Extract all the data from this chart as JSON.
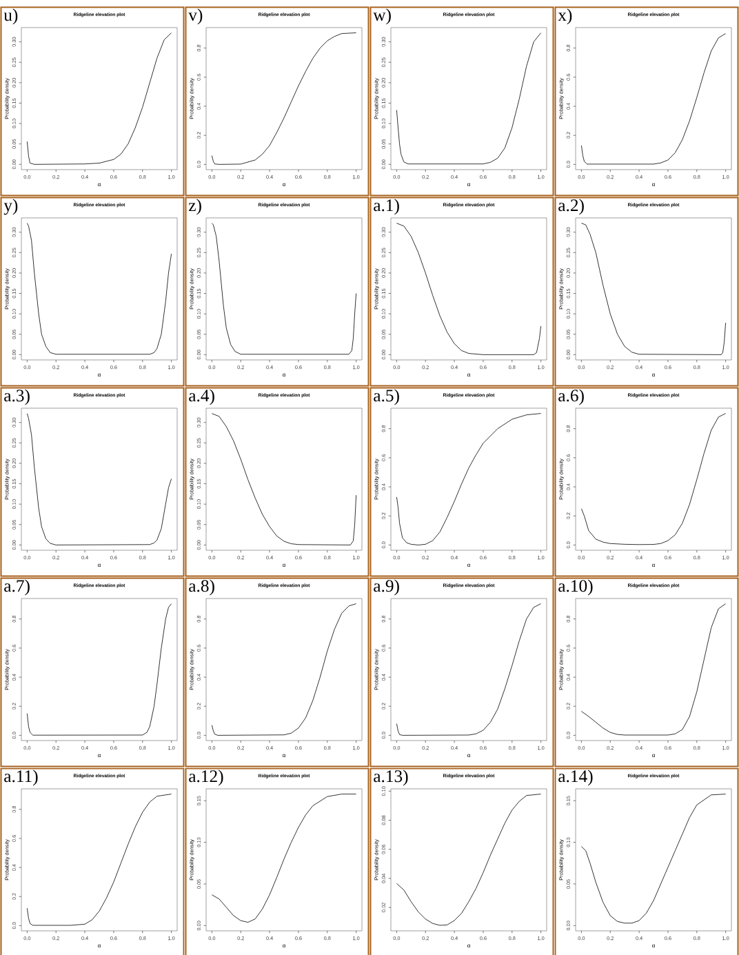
{
  "chart_data": [
    {
      "type": "line",
      "title": "Ridgeline elevation plot",
      "xlabel": "α",
      "ylabel": "Probability density",
      "annotations": [
        "u)"
      ],
      "color": "#000000",
      "xlim": [
        -0.04,
        1.04
      ],
      "ylim": [
        -0.0129,
        0.335
      ],
      "xticks": [
        {
          "value": 0,
          "label": "0.0"
        },
        {
          "value": 0.2,
          "label": "0.2"
        },
        {
          "value": 0.4,
          "label": "0.4"
        },
        {
          "value": 0.6,
          "label": "0.6"
        },
        {
          "value": 0.8,
          "label": "0.8"
        },
        {
          "value": 1,
          "label": "1.0"
        }
      ],
      "yticks": [
        {
          "value": 0,
          "label": "0.00"
        },
        {
          "value": 0.05,
          "label": "0.05"
        },
        {
          "value": 0.1,
          "label": "0.10"
        },
        {
          "value": 0.15,
          "label": "0.15"
        },
        {
          "value": 0.2,
          "label": "0.20"
        },
        {
          "value": 0.25,
          "label": "0.25"
        },
        {
          "value": 0.3,
          "label": "0.30"
        }
      ],
      "x": [
        0,
        0.01,
        0.02,
        0.05,
        0.4,
        0.5,
        0.6,
        0.65,
        0.7,
        0.75,
        0.8,
        0.85,
        0.9,
        0.95,
        1
      ],
      "values": [
        0.056,
        0.02,
        0.003,
        0,
        0.001,
        0.003,
        0.012,
        0.025,
        0.05,
        0.09,
        0.14,
        0.2,
        0.26,
        0.305,
        0.322
      ]
    },
    {
      "type": "line",
      "title": "Ridgeline elevation plot",
      "xlabel": "α",
      "ylabel": "Probability density",
      "annotations": [
        "v)"
      ],
      "color": "#000000",
      "xlim": [
        -0.04,
        1.04
      ],
      "ylim": [
        -0.036,
        0.941
      ],
      "xticks": [
        {
          "value": 0,
          "label": "0.0"
        },
        {
          "value": 0.2,
          "label": "0.2"
        },
        {
          "value": 0.4,
          "label": "0.4"
        },
        {
          "value": 0.6,
          "label": "0.6"
        },
        {
          "value": 0.8,
          "label": "0.8"
        },
        {
          "value": 1,
          "label": "1.0"
        }
      ],
      "yticks": [
        {
          "value": 0,
          "label": "0.0"
        },
        {
          "value": 0.2,
          "label": "0.2"
        },
        {
          "value": 0.4,
          "label": "0.4"
        },
        {
          "value": 0.6,
          "label": "0.6"
        },
        {
          "value": 0.8,
          "label": "0.8"
        }
      ],
      "x": [
        0,
        0.01,
        0.02,
        0.05,
        0.2,
        0.3,
        0.35,
        0.4,
        0.45,
        0.5,
        0.55,
        0.6,
        0.65,
        0.7,
        0.75,
        0.8,
        0.85,
        0.9,
        1
      ],
      "values": [
        0.06,
        0.02,
        0.003,
        0,
        0.002,
        0.03,
        0.07,
        0.13,
        0.22,
        0.32,
        0.43,
        0.54,
        0.64,
        0.73,
        0.8,
        0.85,
        0.88,
        0.9,
        0.905
      ]
    },
    {
      "type": "line",
      "title": "Ridgeline elevation plot",
      "xlabel": "α",
      "ylabel": "Probability density",
      "annotations": [
        "w)"
      ],
      "color": "#000000",
      "xlim": [
        -0.04,
        1.04
      ],
      "ylim": [
        -0.0129,
        0.335
      ],
      "xticks": [
        {
          "value": 0,
          "label": "0.0"
        },
        {
          "value": 0.2,
          "label": "0.2"
        },
        {
          "value": 0.4,
          "label": "0.4"
        },
        {
          "value": 0.6,
          "label": "0.6"
        },
        {
          "value": 0.8,
          "label": "0.8"
        },
        {
          "value": 1,
          "label": "1.0"
        }
      ],
      "yticks": [
        {
          "value": 0,
          "label": "0.00"
        },
        {
          "value": 0.05,
          "label": "0.05"
        },
        {
          "value": 0.1,
          "label": "0.10"
        },
        {
          "value": 0.15,
          "label": "0.15"
        },
        {
          "value": 0.2,
          "label": "0.20"
        },
        {
          "value": 0.25,
          "label": "0.25"
        },
        {
          "value": 0.3,
          "label": "0.30"
        }
      ],
      "x": [
        0,
        0.01,
        0.02,
        0.03,
        0.05,
        0.08,
        0.6,
        0.65,
        0.7,
        0.75,
        0.8,
        0.85,
        0.9,
        0.95,
        1
      ],
      "values": [
        0.133,
        0.09,
        0.05,
        0.025,
        0.006,
        0.001,
        0.001,
        0.005,
        0.015,
        0.04,
        0.09,
        0.16,
        0.24,
        0.3,
        0.322
      ]
    },
    {
      "type": "line",
      "title": "Ridgeline elevation plot",
      "xlabel": "α",
      "ylabel": "Probability density",
      "annotations": [
        "x)"
      ],
      "color": "#000000",
      "xlim": [
        -0.04,
        1.04
      ],
      "ylim": [
        -0.036,
        0.941
      ],
      "xticks": [
        {
          "value": 0,
          "label": "0.0"
        },
        {
          "value": 0.2,
          "label": "0.2"
        },
        {
          "value": 0.4,
          "label": "0.4"
        },
        {
          "value": 0.6,
          "label": "0.6"
        },
        {
          "value": 0.8,
          "label": "0.8"
        },
        {
          "value": 1,
          "label": "1.0"
        }
      ],
      "yticks": [
        {
          "value": 0,
          "label": "0.0"
        },
        {
          "value": 0.2,
          "label": "0.2"
        },
        {
          "value": 0.4,
          "label": "0.4"
        },
        {
          "value": 0.6,
          "label": "0.6"
        },
        {
          "value": 0.8,
          "label": "0.8"
        }
      ],
      "x": [
        0,
        0.01,
        0.02,
        0.04,
        0.5,
        0.55,
        0.6,
        0.65,
        0.7,
        0.75,
        0.8,
        0.85,
        0.9,
        0.95,
        1
      ],
      "values": [
        0.13,
        0.06,
        0.02,
        0.002,
        0.002,
        0.01,
        0.03,
        0.08,
        0.17,
        0.3,
        0.46,
        0.63,
        0.78,
        0.87,
        0.9
      ]
    },
    {
      "type": "line",
      "title": "Ridgeline elevation plot",
      "xlabel": "α",
      "ylabel": "Probability density",
      "annotations": [
        "y)"
      ],
      "color": "#000000",
      "xlim": [
        -0.04,
        1.04
      ],
      "ylim": [
        -0.0129,
        0.335
      ],
      "xticks": [
        {
          "value": 0,
          "label": "0.0"
        },
        {
          "value": 0.2,
          "label": "0.2"
        },
        {
          "value": 0.4,
          "label": "0.4"
        },
        {
          "value": 0.6,
          "label": "0.6"
        },
        {
          "value": 0.8,
          "label": "0.8"
        },
        {
          "value": 1,
          "label": "1.0"
        }
      ],
      "yticks": [
        {
          "value": 0,
          "label": "0.00"
        },
        {
          "value": 0.05,
          "label": "0.05"
        },
        {
          "value": 0.1,
          "label": "0.10"
        },
        {
          "value": 0.15,
          "label": "0.15"
        },
        {
          "value": 0.2,
          "label": "0.20"
        },
        {
          "value": 0.25,
          "label": "0.25"
        },
        {
          "value": 0.3,
          "label": "0.30"
        }
      ],
      "x": [
        0,
        0.01,
        0.03,
        0.05,
        0.08,
        0.1,
        0.13,
        0.16,
        0.2,
        0.85,
        0.88,
        0.9,
        0.93,
        0.96,
        0.98,
        1
      ],
      "values": [
        0.322,
        0.315,
        0.28,
        0.2,
        0.1,
        0.05,
        0.02,
        0.005,
        0.001,
        0.001,
        0.005,
        0.015,
        0.05,
        0.13,
        0.2,
        0.247
      ]
    },
    {
      "type": "line",
      "title": "Ridgeline elevation plot",
      "xlabel": "α",
      "ylabel": "Probability density",
      "annotations": [
        "z)"
      ],
      "color": "#000000",
      "xlim": [
        -0.04,
        1.04
      ],
      "ylim": [
        -0.0129,
        0.335
      ],
      "xticks": [
        {
          "value": 0,
          "label": "0.0"
        },
        {
          "value": 0.2,
          "label": "0.2"
        },
        {
          "value": 0.4,
          "label": "0.4"
        },
        {
          "value": 0.6,
          "label": "0.6"
        },
        {
          "value": 0.8,
          "label": "0.8"
        },
        {
          "value": 1,
          "label": "1.0"
        }
      ],
      "yticks": [
        {
          "value": 0,
          "label": "0.00"
        },
        {
          "value": 0.05,
          "label": "0.05"
        },
        {
          "value": 0.1,
          "label": "0.10"
        },
        {
          "value": 0.15,
          "label": "0.15"
        },
        {
          "value": 0.2,
          "label": "0.20"
        },
        {
          "value": 0.25,
          "label": "0.25"
        },
        {
          "value": 0.3,
          "label": "0.30"
        }
      ],
      "x": [
        0,
        0.01,
        0.03,
        0.05,
        0.08,
        0.1,
        0.13,
        0.16,
        0.2,
        0.95,
        0.97,
        0.98,
        0.99,
        1
      ],
      "values": [
        0.322,
        0.318,
        0.29,
        0.23,
        0.12,
        0.065,
        0.025,
        0.008,
        0.001,
        0.001,
        0.01,
        0.04,
        0.1,
        0.15
      ]
    },
    {
      "type": "line",
      "title": "Ridgeline elevation plot",
      "xlabel": "α",
      "ylabel": "Probability density",
      "annotations": [
        "a.1)"
      ],
      "color": "#000000",
      "xlim": [
        -0.04,
        1.04
      ],
      "ylim": [
        -0.0129,
        0.335
      ],
      "xticks": [
        {
          "value": 0,
          "label": "0.0"
        },
        {
          "value": 0.2,
          "label": "0.2"
        },
        {
          "value": 0.4,
          "label": "0.4"
        },
        {
          "value": 0.6,
          "label": "0.6"
        },
        {
          "value": 0.8,
          "label": "0.8"
        },
        {
          "value": 1,
          "label": "1.0"
        }
      ],
      "yticks": [
        {
          "value": 0,
          "label": "0.00"
        },
        {
          "value": 0.05,
          "label": "0.05"
        },
        {
          "value": 0.1,
          "label": "0.10"
        },
        {
          "value": 0.15,
          "label": "0.15"
        },
        {
          "value": 0.2,
          "label": "0.20"
        },
        {
          "value": 0.25,
          "label": "0.25"
        },
        {
          "value": 0.3,
          "label": "0.30"
        }
      ],
      "x": [
        0,
        0.05,
        0.1,
        0.15,
        0.2,
        0.25,
        0.3,
        0.35,
        0.4,
        0.45,
        0.5,
        0.6,
        0.95,
        0.97,
        0.99,
        1
      ],
      "values": [
        0.322,
        0.315,
        0.29,
        0.25,
        0.2,
        0.145,
        0.095,
        0.055,
        0.027,
        0.01,
        0.003,
        0,
        0,
        0.005,
        0.04,
        0.07
      ]
    },
    {
      "type": "line",
      "title": "Ridgeline elevation plot",
      "xlabel": "α",
      "ylabel": "Probability density",
      "annotations": [
        "a.2)"
      ],
      "color": "#000000",
      "xlim": [
        -0.04,
        1.04
      ],
      "ylim": [
        -0.0129,
        0.335
      ],
      "xticks": [
        {
          "value": 0,
          "label": "0.0"
        },
        {
          "value": 0.2,
          "label": "0.2"
        },
        {
          "value": 0.4,
          "label": "0.4"
        },
        {
          "value": 0.6,
          "label": "0.6"
        },
        {
          "value": 0.8,
          "label": "0.8"
        },
        {
          "value": 1,
          "label": "1.0"
        }
      ],
      "yticks": [
        {
          "value": 0,
          "label": "0.00"
        },
        {
          "value": 0.05,
          "label": "0.05"
        },
        {
          "value": 0.1,
          "label": "0.10"
        },
        {
          "value": 0.15,
          "label": "0.15"
        },
        {
          "value": 0.2,
          "label": "0.20"
        },
        {
          "value": 0.25,
          "label": "0.25"
        },
        {
          "value": 0.3,
          "label": "0.30"
        }
      ],
      "x": [
        0,
        0.03,
        0.06,
        0.1,
        0.15,
        0.2,
        0.25,
        0.3,
        0.35,
        0.4,
        0.97,
        0.98,
        0.99,
        1
      ],
      "values": [
        0.322,
        0.318,
        0.295,
        0.25,
        0.17,
        0.1,
        0.05,
        0.02,
        0.006,
        0.001,
        0,
        0.005,
        0.03,
        0.078
      ]
    },
    {
      "type": "line",
      "title": "Ridgeline elevation plot",
      "xlabel": "α",
      "ylabel": "Probability density",
      "annotations": [
        "a.3)"
      ],
      "color": "#000000",
      "xlim": [
        -0.04,
        1.04
      ],
      "ylim": [
        -0.0129,
        0.335
      ],
      "xticks": [
        {
          "value": 0,
          "label": "0.0"
        },
        {
          "value": 0.2,
          "label": "0.2"
        },
        {
          "value": 0.4,
          "label": "0.4"
        },
        {
          "value": 0.6,
          "label": "0.6"
        },
        {
          "value": 0.8,
          "label": "0.8"
        },
        {
          "value": 1,
          "label": "1.0"
        }
      ],
      "yticks": [
        {
          "value": 0,
          "label": "0.00"
        },
        {
          "value": 0.05,
          "label": "0.05"
        },
        {
          "value": 0.1,
          "label": "0.10"
        },
        {
          "value": 0.15,
          "label": "0.15"
        },
        {
          "value": 0.2,
          "label": "0.20"
        },
        {
          "value": 0.25,
          "label": "0.25"
        },
        {
          "value": 0.3,
          "label": "0.30"
        }
      ],
      "x": [
        0,
        0.01,
        0.03,
        0.05,
        0.08,
        0.1,
        0.13,
        0.16,
        0.2,
        0.85,
        0.88,
        0.9,
        0.93,
        0.96,
        0.98,
        1
      ],
      "values": [
        0.322,
        0.31,
        0.27,
        0.19,
        0.09,
        0.045,
        0.015,
        0.004,
        0,
        0.001,
        0.005,
        0.012,
        0.04,
        0.1,
        0.14,
        0.162
      ]
    },
    {
      "type": "line",
      "title": "Ridgeline elevation plot",
      "xlabel": "α",
      "ylabel": "Probability density",
      "annotations": [
        "a.4)"
      ],
      "color": "#000000",
      "xlim": [
        -0.04,
        1.04
      ],
      "ylim": [
        -0.0129,
        0.335
      ],
      "xticks": [
        {
          "value": 0,
          "label": "0.0"
        },
        {
          "value": 0.2,
          "label": "0.2"
        },
        {
          "value": 0.4,
          "label": "0.4"
        },
        {
          "value": 0.6,
          "label": "0.6"
        },
        {
          "value": 0.8,
          "label": "0.8"
        },
        {
          "value": 1,
          "label": "1.0"
        }
      ],
      "yticks": [
        {
          "value": 0,
          "label": "0.00"
        },
        {
          "value": 0.05,
          "label": "0.05"
        },
        {
          "value": 0.1,
          "label": "0.10"
        },
        {
          "value": 0.15,
          "label": "0.15"
        },
        {
          "value": 0.2,
          "label": "0.20"
        },
        {
          "value": 0.25,
          "label": "0.25"
        },
        {
          "value": 0.3,
          "label": "0.30"
        }
      ],
      "x": [
        0,
        0.05,
        0.1,
        0.15,
        0.2,
        0.25,
        0.3,
        0.35,
        0.4,
        0.45,
        0.5,
        0.55,
        0.6,
        0.96,
        0.98,
        0.99,
        1
      ],
      "values": [
        0.322,
        0.315,
        0.29,
        0.255,
        0.21,
        0.16,
        0.115,
        0.075,
        0.045,
        0.022,
        0.009,
        0.003,
        0.001,
        0,
        0.01,
        0.05,
        0.122
      ]
    },
    {
      "type": "line",
      "title": "Ridgeline elevation plot",
      "xlabel": "α",
      "ylabel": "Probability density",
      "annotations": [
        "a.5)"
      ],
      "color": "#000000",
      "xlim": [
        -0.04,
        1.04
      ],
      "ylim": [
        -0.036,
        0.941
      ],
      "xticks": [
        {
          "value": 0,
          "label": "0.0"
        },
        {
          "value": 0.2,
          "label": "0.2"
        },
        {
          "value": 0.4,
          "label": "0.4"
        },
        {
          "value": 0.6,
          "label": "0.6"
        },
        {
          "value": 0.8,
          "label": "0.8"
        },
        {
          "value": 1,
          "label": "1.0"
        }
      ],
      "yticks": [
        {
          "value": 0,
          "label": "0.0"
        },
        {
          "value": 0.2,
          "label": "0.2"
        },
        {
          "value": 0.4,
          "label": "0.4"
        },
        {
          "value": 0.6,
          "label": "0.6"
        },
        {
          "value": 0.8,
          "label": "0.8"
        }
      ],
      "x": [
        0,
        0.01,
        0.02,
        0.04,
        0.07,
        0.1,
        0.15,
        0.2,
        0.25,
        0.3,
        0.35,
        0.4,
        0.45,
        0.5,
        0.55,
        0.6,
        0.7,
        0.8,
        0.9,
        1
      ],
      "values": [
        0.33,
        0.26,
        0.15,
        0.05,
        0.015,
        0.005,
        0,
        0.005,
        0.03,
        0.09,
        0.19,
        0.3,
        0.42,
        0.53,
        0.62,
        0.7,
        0.8,
        0.865,
        0.895,
        0.905
      ]
    },
    {
      "type": "line",
      "title": "Ridgeline elevation plot",
      "xlabel": "α",
      "ylabel": "Probability density",
      "annotations": [
        "a.6)"
      ],
      "color": "#000000",
      "xlim": [
        -0.04,
        1.04
      ],
      "ylim": [
        -0.036,
        0.941
      ],
      "xticks": [
        {
          "value": 0,
          "label": "0.0"
        },
        {
          "value": 0.2,
          "label": "0.2"
        },
        {
          "value": 0.4,
          "label": "0.4"
        },
        {
          "value": 0.6,
          "label": "0.6"
        },
        {
          "value": 0.8,
          "label": "0.8"
        },
        {
          "value": 1,
          "label": "1.0"
        }
      ],
      "yticks": [
        {
          "value": 0,
          "label": "0.0"
        },
        {
          "value": 0.2,
          "label": "0.2"
        },
        {
          "value": 0.4,
          "label": "0.4"
        },
        {
          "value": 0.6,
          "label": "0.6"
        },
        {
          "value": 0.8,
          "label": "0.8"
        }
      ],
      "x": [
        0,
        0.02,
        0.05,
        0.1,
        0.15,
        0.2,
        0.3,
        0.4,
        0.5,
        0.55,
        0.6,
        0.65,
        0.7,
        0.75,
        0.8,
        0.85,
        0.9,
        0.95,
        1
      ],
      "values": [
        0.25,
        0.2,
        0.1,
        0.04,
        0.02,
        0.01,
        0.005,
        0.003,
        0.004,
        0.01,
        0.03,
        0.07,
        0.15,
        0.28,
        0.45,
        0.63,
        0.79,
        0.88,
        0.905
      ]
    },
    {
      "type": "line",
      "title": "Ridgeline elevation plot",
      "xlabel": "α",
      "ylabel": "Probability density",
      "annotations": [
        "a.7)"
      ],
      "color": "#000000",
      "xlim": [
        -0.04,
        1.04
      ],
      "ylim": [
        -0.036,
        0.941
      ],
      "xticks": [
        {
          "value": 0,
          "label": "0.0"
        },
        {
          "value": 0.2,
          "label": "0.2"
        },
        {
          "value": 0.4,
          "label": "0.4"
        },
        {
          "value": 0.6,
          "label": "0.6"
        },
        {
          "value": 0.8,
          "label": "0.8"
        },
        {
          "value": 1,
          "label": "1.0"
        }
      ],
      "yticks": [
        {
          "value": 0,
          "label": "0.0"
        },
        {
          "value": 0.2,
          "label": "0.2"
        },
        {
          "value": 0.4,
          "label": "0.4"
        },
        {
          "value": 0.6,
          "label": "0.6"
        },
        {
          "value": 0.8,
          "label": "0.8"
        }
      ],
      "x": [
        0,
        0.01,
        0.02,
        0.04,
        0.8,
        0.83,
        0.85,
        0.88,
        0.9,
        0.93,
        0.96,
        0.98,
        1
      ],
      "values": [
        0.15,
        0.06,
        0.02,
        0.001,
        0.002,
        0.02,
        0.06,
        0.2,
        0.35,
        0.6,
        0.8,
        0.88,
        0.905
      ]
    },
    {
      "type": "line",
      "title": "Ridgeline elevation plot",
      "xlabel": "α",
      "ylabel": "Probability density",
      "annotations": [
        "a.8)"
      ],
      "color": "#000000",
      "xlim": [
        -0.04,
        1.04
      ],
      "ylim": [
        -0.036,
        0.941
      ],
      "xticks": [
        {
          "value": 0,
          "label": "0.0"
        },
        {
          "value": 0.2,
          "label": "0.2"
        },
        {
          "value": 0.4,
          "label": "0.4"
        },
        {
          "value": 0.6,
          "label": "0.6"
        },
        {
          "value": 0.8,
          "label": "0.8"
        },
        {
          "value": 1,
          "label": "1.0"
        }
      ],
      "yticks": [
        {
          "value": 0,
          "label": "0.0"
        },
        {
          "value": 0.2,
          "label": "0.2"
        },
        {
          "value": 0.4,
          "label": "0.4"
        },
        {
          "value": 0.6,
          "label": "0.6"
        },
        {
          "value": 0.8,
          "label": "0.8"
        }
      ],
      "x": [
        0,
        0.01,
        0.02,
        0.04,
        0.5,
        0.55,
        0.6,
        0.65,
        0.7,
        0.75,
        0.8,
        0.85,
        0.9,
        0.95,
        1
      ],
      "values": [
        0.07,
        0.03,
        0.008,
        0,
        0.003,
        0.015,
        0.05,
        0.12,
        0.24,
        0.4,
        0.58,
        0.73,
        0.84,
        0.89,
        0.905
      ]
    },
    {
      "type": "line",
      "title": "Ridgeline elevation plot",
      "xlabel": "α",
      "ylabel": "Probability density",
      "annotations": [
        "a.9)"
      ],
      "color": "#000000",
      "xlim": [
        -0.04,
        1.04
      ],
      "ylim": [
        -0.036,
        0.941
      ],
      "xticks": [
        {
          "value": 0,
          "label": "0.0"
        },
        {
          "value": 0.2,
          "label": "0.2"
        },
        {
          "value": 0.4,
          "label": "0.4"
        },
        {
          "value": 0.6,
          "label": "0.6"
        },
        {
          "value": 0.8,
          "label": "0.8"
        },
        {
          "value": 1,
          "label": "1.0"
        }
      ],
      "yticks": [
        {
          "value": 0,
          "label": "0.0"
        },
        {
          "value": 0.2,
          "label": "0.2"
        },
        {
          "value": 0.4,
          "label": "0.4"
        },
        {
          "value": 0.6,
          "label": "0.6"
        },
        {
          "value": 0.8,
          "label": "0.8"
        }
      ],
      "x": [
        0,
        0.01,
        0.02,
        0.04,
        0.5,
        0.55,
        0.6,
        0.65,
        0.7,
        0.75,
        0.8,
        0.85,
        0.9,
        0.95,
        1
      ],
      "values": [
        0.08,
        0.03,
        0.005,
        0,
        0.002,
        0.01,
        0.035,
        0.09,
        0.18,
        0.32,
        0.48,
        0.65,
        0.8,
        0.88,
        0.905
      ]
    },
    {
      "type": "line",
      "title": "Ridgeline elevation plot",
      "xlabel": "α",
      "ylabel": "Probability density",
      "annotations": [
        "a.10)"
      ],
      "color": "#000000",
      "xlim": [
        -0.04,
        1.04
      ],
      "ylim": [
        -0.036,
        0.941
      ],
      "xticks": [
        {
          "value": 0,
          "label": "0.0"
        },
        {
          "value": 0.2,
          "label": "0.2"
        },
        {
          "value": 0.4,
          "label": "0.4"
        },
        {
          "value": 0.6,
          "label": "0.6"
        },
        {
          "value": 0.8,
          "label": "0.8"
        },
        {
          "value": 1,
          "label": "1.0"
        }
      ],
      "yticks": [
        {
          "value": 0,
          "label": "0.0"
        },
        {
          "value": 0.2,
          "label": "0.2"
        },
        {
          "value": 0.4,
          "label": "0.4"
        },
        {
          "value": 0.6,
          "label": "0.6"
        },
        {
          "value": 0.8,
          "label": "0.8"
        }
      ],
      "x": [
        0,
        0.05,
        0.1,
        0.15,
        0.2,
        0.25,
        0.3,
        0.6,
        0.65,
        0.7,
        0.75,
        0.8,
        0.85,
        0.9,
        0.95,
        1
      ],
      "values": [
        0.165,
        0.13,
        0.09,
        0.05,
        0.02,
        0.006,
        0.002,
        0.002,
        0.01,
        0.04,
        0.13,
        0.3,
        0.52,
        0.74,
        0.87,
        0.905
      ]
    },
    {
      "type": "line",
      "title": "Ridgeline elevation plot",
      "xlabel": "α",
      "ylabel": "Probability density",
      "annotations": [
        "a.11)"
      ],
      "color": "#000000",
      "xlim": [
        -0.04,
        1.04
      ],
      "ylim": [
        -0.036,
        0.941
      ],
      "xticks": [
        {
          "value": 0,
          "label": "0.0"
        },
        {
          "value": 0.2,
          "label": "0.2"
        },
        {
          "value": 0.4,
          "label": "0.4"
        },
        {
          "value": 0.6,
          "label": "0.6"
        },
        {
          "value": 0.8,
          "label": "0.8"
        },
        {
          "value": 1,
          "label": "1.0"
        }
      ],
      "yticks": [
        {
          "value": 0,
          "label": "0.0"
        },
        {
          "value": 0.2,
          "label": "0.2"
        },
        {
          "value": 0.4,
          "label": "0.4"
        },
        {
          "value": 0.6,
          "label": "0.6"
        },
        {
          "value": 0.8,
          "label": "0.8"
        }
      ],
      "x": [
        0,
        0.01,
        0.02,
        0.04,
        0.3,
        0.4,
        0.45,
        0.5,
        0.55,
        0.6,
        0.65,
        0.7,
        0.75,
        0.8,
        0.85,
        0.9,
        1
      ],
      "values": [
        0.12,
        0.05,
        0.015,
        0.002,
        0.002,
        0.01,
        0.04,
        0.1,
        0.19,
        0.3,
        0.43,
        0.56,
        0.68,
        0.78,
        0.85,
        0.89,
        0.905
      ]
    },
    {
      "type": "line",
      "title": "Ridgeline elevation plot",
      "xlabel": "α",
      "ylabel": "Probability density",
      "annotations": [
        "a.12)"
      ],
      "color": "#000000",
      "xlim": [
        -0.04,
        1.04
      ],
      "ylim": [
        -0.0063,
        0.1643
      ],
      "xticks": [
        {
          "value": 0,
          "label": "0.0"
        },
        {
          "value": 0.2,
          "label": "0.2"
        },
        {
          "value": 0.4,
          "label": "0.4"
        },
        {
          "value": 0.6,
          "label": "0.6"
        },
        {
          "value": 0.8,
          "label": "0.8"
        },
        {
          "value": 1,
          "label": "1.0"
        }
      ],
      "yticks": [
        {
          "value": 0,
          "label": "0.00"
        },
        {
          "value": 0.05,
          "label": "0.05"
        },
        {
          "value": 0.1,
          "label": "0.10"
        },
        {
          "value": 0.15,
          "label": "0.15"
        }
      ],
      "x": [
        0,
        0.05,
        0.1,
        0.15,
        0.2,
        0.25,
        0.3,
        0.35,
        0.4,
        0.45,
        0.5,
        0.55,
        0.6,
        0.65,
        0.7,
        0.8,
        0.9,
        1
      ],
      "values": [
        0.037,
        0.032,
        0.022,
        0.012,
        0.006,
        0.004,
        0.008,
        0.02,
        0.037,
        0.058,
        0.08,
        0.1,
        0.118,
        0.133,
        0.144,
        0.155,
        0.158,
        0.158
      ]
    },
    {
      "type": "line",
      "title": "Ridgeline elevation plot",
      "xlabel": "α",
      "ylabel": "Probability density",
      "annotations": [
        "a.13)"
      ],
      "color": "#000000",
      "xlim": [
        -0.04,
        1.04
      ],
      "ylim": [
        0.0039,
        0.1016
      ],
      "xticks": [
        {
          "value": 0,
          "label": "0.0"
        },
        {
          "value": 0.2,
          "label": "0.2"
        },
        {
          "value": 0.4,
          "label": "0.4"
        },
        {
          "value": 0.6,
          "label": "0.6"
        },
        {
          "value": 0.8,
          "label": "0.8"
        },
        {
          "value": 1,
          "label": "1.0"
        }
      ],
      "yticks": [
        {
          "value": 0.02,
          "label": "0.02"
        },
        {
          "value": 0.04,
          "label": "0.04"
        },
        {
          "value": 0.06,
          "label": "0.06"
        },
        {
          "value": 0.08,
          "label": "0.08"
        },
        {
          "value": 0.1,
          "label": "0.10"
        }
      ],
      "x": [
        0,
        0.05,
        0.1,
        0.15,
        0.2,
        0.25,
        0.3,
        0.35,
        0.4,
        0.45,
        0.5,
        0.55,
        0.6,
        0.65,
        0.7,
        0.75,
        0.8,
        0.85,
        0.9,
        1
      ],
      "values": [
        0.0365,
        0.032,
        0.024,
        0.017,
        0.012,
        0.009,
        0.0077,
        0.008,
        0.011,
        0.016,
        0.024,
        0.033,
        0.044,
        0.056,
        0.067,
        0.078,
        0.087,
        0.093,
        0.097,
        0.098
      ]
    },
    {
      "type": "line",
      "title": "Ridgeline elevation plot",
      "xlabel": "α",
      "ylabel": "Probability density",
      "annotations": [
        "a.14)"
      ],
      "color": "#000000",
      "xlim": [
        -0.04,
        1.04
      ],
      "ylim": [
        -0.0063,
        0.1643
      ],
      "xticks": [
        {
          "value": 0,
          "label": "0.0"
        },
        {
          "value": 0.2,
          "label": "0.2"
        },
        {
          "value": 0.4,
          "label": "0.4"
        },
        {
          "value": 0.6,
          "label": "0.6"
        },
        {
          "value": 0.8,
          "label": "0.8"
        },
        {
          "value": 1,
          "label": "1.0"
        }
      ],
      "yticks": [
        {
          "value": 0,
          "label": "0.00"
        },
        {
          "value": 0.05,
          "label": "0.05"
        },
        {
          "value": 0.1,
          "label": "0.10"
        },
        {
          "value": 0.15,
          "label": "0.15"
        }
      ],
      "x": [
        0,
        0.03,
        0.06,
        0.1,
        0.15,
        0.2,
        0.25,
        0.3,
        0.35,
        0.4,
        0.45,
        0.5,
        0.55,
        0.6,
        0.65,
        0.7,
        0.75,
        0.8,
        0.9,
        1
      ],
      "values": [
        0.095,
        0.09,
        0.075,
        0.052,
        0.028,
        0.012,
        0.005,
        0.003,
        0.003,
        0.006,
        0.015,
        0.03,
        0.05,
        0.07,
        0.09,
        0.11,
        0.13,
        0.145,
        0.157,
        0.158
      ]
    }
  ]
}
